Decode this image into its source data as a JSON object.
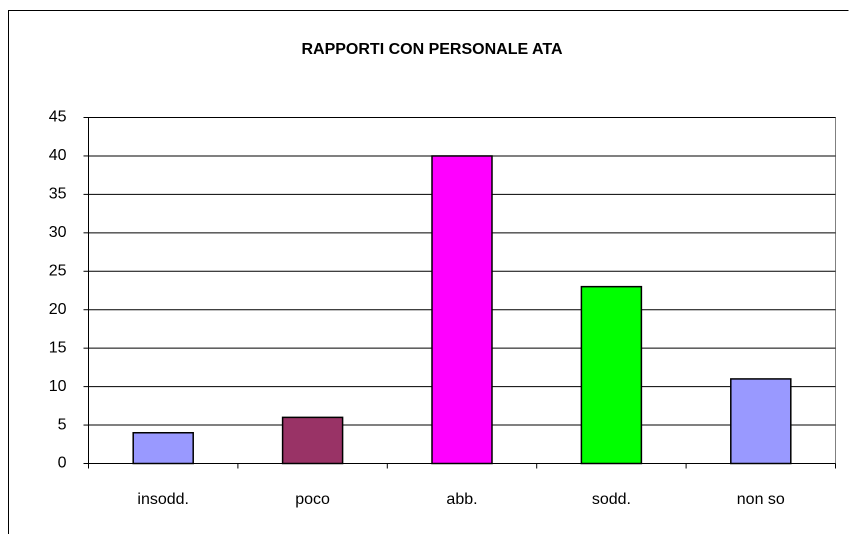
{
  "chart_data": {
    "type": "bar",
    "title": "RAPPORTI CON PERSONALE ATA",
    "categories": [
      "insodd.",
      "poco",
      "abb.",
      "sodd.",
      "non so"
    ],
    "values": [
      4,
      6,
      40,
      23,
      11
    ],
    "colors": [
      "#9999ff",
      "#993366",
      "#ff00ff",
      "#00ff00",
      "#9999ff"
    ],
    "ylim": [
      0,
      45
    ],
    "yticks": [
      0,
      5,
      10,
      15,
      20,
      25,
      30,
      35,
      40,
      45
    ],
    "grid": true
  }
}
